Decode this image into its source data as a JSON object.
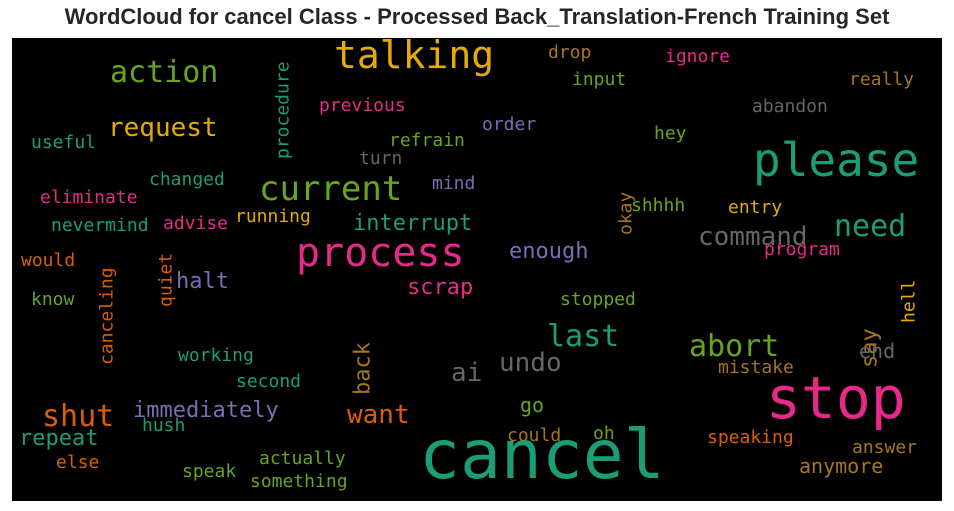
{
  "title": "WordCloud for cancel Class - Processed Back_Translation-French Training Set",
  "chart_data": {
    "type": "wordcloud",
    "title": "WordCloud for cancel Class - Processed Back_Translation-French Training Set",
    "colormap": "Dark2",
    "background": "#000000",
    "words": [
      {
        "text": "cancel",
        "color": "#1b9e77"
      },
      {
        "text": "stop",
        "color": "#e7298a"
      },
      {
        "text": "please",
        "color": "#1b9e77"
      },
      {
        "text": "process",
        "color": "#e7298a"
      },
      {
        "text": "talking",
        "color": "#e6ab02"
      },
      {
        "text": "current",
        "color": "#66a61e"
      },
      {
        "text": "action",
        "color": "#66a61e"
      },
      {
        "text": "abort",
        "color": "#66a61e"
      },
      {
        "text": "need",
        "color": "#1b9e77"
      },
      {
        "text": "last",
        "color": "#1b9e77"
      },
      {
        "text": "shut",
        "color": "#d95f02"
      },
      {
        "text": "command",
        "color": "#666666"
      },
      {
        "text": "request",
        "color": "#e6ab02"
      },
      {
        "text": "undo",
        "color": "#666666"
      },
      {
        "text": "want",
        "color": "#d95f02"
      },
      {
        "text": "immediately",
        "color": "#7570b3"
      },
      {
        "text": "interrupt",
        "color": "#1b9e77"
      },
      {
        "text": "ai",
        "color": "#666666"
      },
      {
        "text": "back",
        "color": "#a6761d"
      },
      {
        "text": "enough",
        "color": "#7570b3"
      },
      {
        "text": "halt",
        "color": "#7570b3"
      },
      {
        "text": "scrap",
        "color": "#e7298a"
      },
      {
        "text": "repeat",
        "color": "#1b9e77"
      },
      {
        "text": "anymore",
        "color": "#a6761d"
      },
      {
        "text": "say",
        "color": "#a6761d"
      },
      {
        "text": "end",
        "color": "#666666"
      },
      {
        "text": "go",
        "color": "#66a61e"
      },
      {
        "text": "previous",
        "color": "#e7298a"
      },
      {
        "text": "procedure",
        "color": "#1b9e77"
      },
      {
        "text": "drop",
        "color": "#a6761d"
      },
      {
        "text": "ignore",
        "color": "#e7298a"
      },
      {
        "text": "really",
        "color": "#a6761d"
      },
      {
        "text": "input",
        "color": "#66a61e"
      },
      {
        "text": "abandon",
        "color": "#666666"
      },
      {
        "text": "order",
        "color": "#7570b3"
      },
      {
        "text": "hey",
        "color": "#66a61e"
      },
      {
        "text": "refrain",
        "color": "#66a61e"
      },
      {
        "text": "useful",
        "color": "#1b9e77"
      },
      {
        "text": "turn",
        "color": "#666666"
      },
      {
        "text": "changed",
        "color": "#1b9e77"
      },
      {
        "text": "mind",
        "color": "#7570b3"
      },
      {
        "text": "eliminate",
        "color": "#e7298a"
      },
      {
        "text": "okay",
        "color": "#a6761d"
      },
      {
        "text": "shhhh",
        "color": "#66a61e"
      },
      {
        "text": "entry",
        "color": "#e6ab02"
      },
      {
        "text": "nevermind",
        "color": "#1b9e77"
      },
      {
        "text": "advise",
        "color": "#e7298a"
      },
      {
        "text": "running",
        "color": "#e6ab02"
      },
      {
        "text": "program",
        "color": "#e7298a"
      },
      {
        "text": "would",
        "color": "#d95f02"
      },
      {
        "text": "quiet",
        "color": "#d95f02"
      },
      {
        "text": "canceling",
        "color": "#d95f02"
      },
      {
        "text": "know",
        "color": "#66a61e"
      },
      {
        "text": "stopped",
        "color": "#66a61e"
      },
      {
        "text": "hell",
        "color": "#e6ab02"
      },
      {
        "text": "working",
        "color": "#1b9e77"
      },
      {
        "text": "mistake",
        "color": "#a6761d"
      },
      {
        "text": "second",
        "color": "#1b9e77"
      },
      {
        "text": "hush",
        "color": "#1b9e77"
      },
      {
        "text": "could",
        "color": "#a6761d"
      },
      {
        "text": "oh",
        "color": "#66a61e"
      },
      {
        "text": "speaking",
        "color": "#d95f02"
      },
      {
        "text": "answer",
        "color": "#a6761d"
      },
      {
        "text": "else",
        "color": "#d95f02"
      },
      {
        "text": "speak",
        "color": "#66a61e"
      },
      {
        "text": "actually",
        "color": "#66a61e"
      },
      {
        "text": "something",
        "color": "#66a61e"
      }
    ]
  }
}
